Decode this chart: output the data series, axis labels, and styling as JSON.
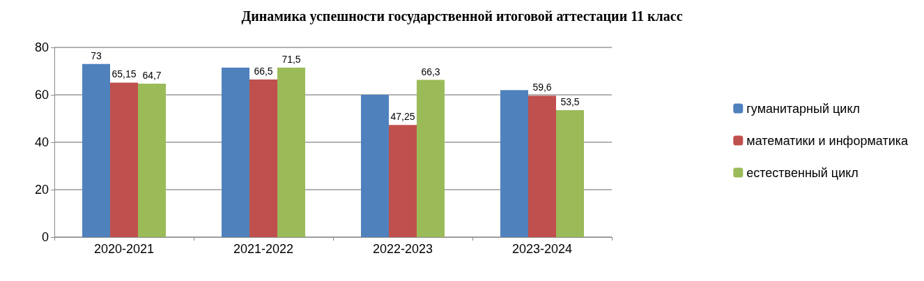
{
  "chart_data": {
    "type": "bar",
    "title": "Динамика успешности государственной итоговой аттестации 11 класс",
    "categories": [
      "2020-2021",
      "2021-2022",
      "2022-2023",
      "2023-2024"
    ],
    "series": [
      {
        "name": "гуманитарный цикл",
        "color": "#4f81bd",
        "values": [
          73,
          71.5,
          60,
          62
        ],
        "value_labels": [
          "73",
          null,
          null,
          null
        ]
      },
      {
        "name": "математики и информатика",
        "color": "#c0504d",
        "values": [
          65.15,
          66.5,
          47.25,
          59.6
        ],
        "value_labels": [
          "65,15",
          "66,5",
          "47,25",
          "59,6"
        ]
      },
      {
        "name": "естественный цикл",
        "color": "#9bbb59",
        "values": [
          64.7,
          71.5,
          66.3,
          53.5
        ],
        "value_labels": [
          "64,7",
          "71,5",
          "66,3",
          "53,5"
        ]
      }
    ],
    "ylim": [
      0,
      80
    ],
    "yticks": [
      0,
      20,
      40,
      60,
      80
    ],
    "grid": "y",
    "legend": "right"
  }
}
